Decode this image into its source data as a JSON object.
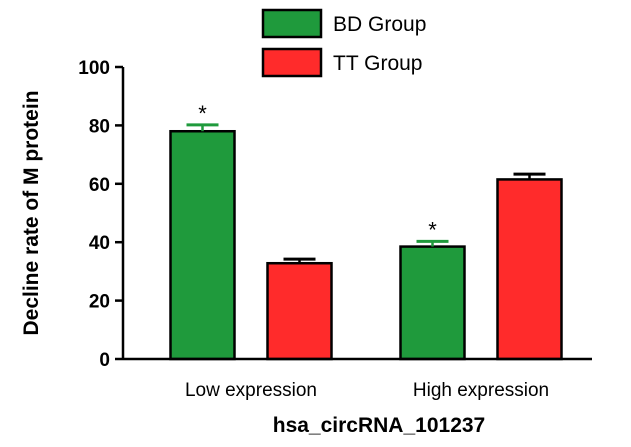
{
  "chart_data": {
    "type": "bar",
    "title": "",
    "xlabel": "hsa_circRNA_101237",
    "ylabel": "Decline rate of M protein",
    "ylim": [
      0,
      100
    ],
    "yticks": [
      0,
      20,
      40,
      60,
      80,
      100
    ],
    "categories": [
      "Low expression",
      "High expression"
    ],
    "series": [
      {
        "name": "BD Group",
        "color": "#1f9a3c",
        "errColor": "#1f9a3c",
        "values": [
          78,
          38.5
        ],
        "errors": [
          2.2,
          1.8
        ],
        "markers": [
          "*",
          "*"
        ]
      },
      {
        "name": "TT Group",
        "color": "#ff2b2b",
        "errColor": "#000000",
        "values": [
          32.8,
          61.5
        ],
        "errors": [
          1.4,
          1.8
        ],
        "markers": [
          "",
          ""
        ]
      }
    ],
    "legend": "top",
    "grid": false
  }
}
